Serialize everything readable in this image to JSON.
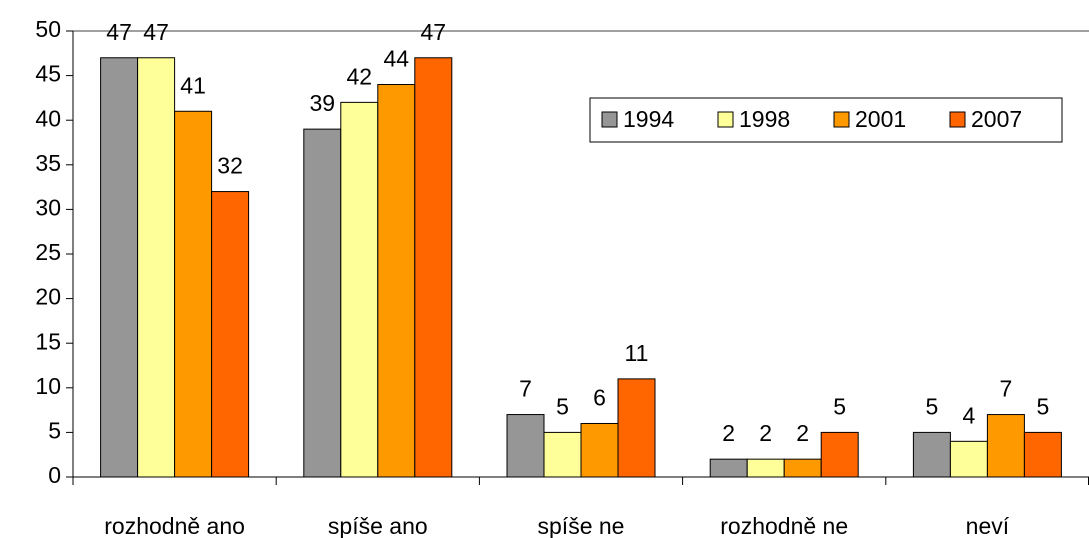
{
  "chart_data": {
    "type": "bar",
    "categories": [
      "rozhodně ano",
      "spíše ano",
      "spíše ne",
      "rozhodně ne",
      "neví"
    ],
    "series": [
      {
        "name": "1994",
        "color": "#969696",
        "values": [
          47,
          39,
          7,
          2,
          5
        ]
      },
      {
        "name": "1998",
        "color": "#ffff99",
        "values": [
          47,
          42,
          5,
          2,
          4
        ]
      },
      {
        "name": "2001",
        "color": "#ff9900",
        "values": [
          41,
          44,
          6,
          2,
          7
        ]
      },
      {
        "name": "2007",
        "color": "#ff6600",
        "values": [
          32,
          47,
          11,
          5,
          5
        ]
      }
    ],
    "ylim": [
      0,
      50
    ],
    "yticks": [
      0,
      5,
      10,
      15,
      20,
      25,
      30,
      35,
      40,
      45,
      50
    ],
    "legend": "upper right"
  }
}
